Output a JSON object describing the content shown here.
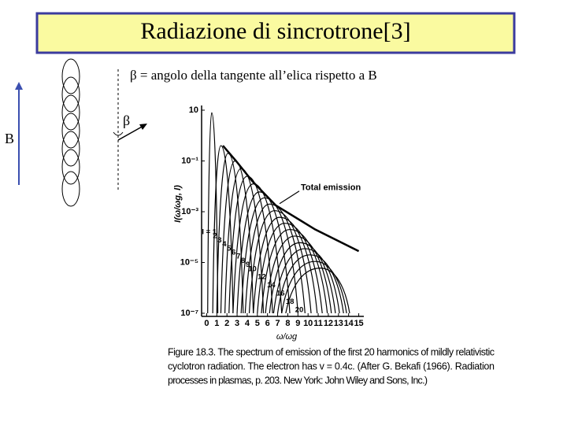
{
  "slide": {
    "title": "Radiazione di sincrotrone[3]",
    "subtitle": "β = angolo della tangente all’elica rispetto a B",
    "b_label": "B",
    "beta_label": "β",
    "caption": [
      "Figure 18.3. The spectrum of emission of the first 20 harmonics of mildly relativistic",
      "cyclotron radiation. The electron has v = 0.4c. (After G. Bekafi (1966). Radiation",
      "processes in plasmas, p. 203. New York: John Wiley and Sons, Inc.)"
    ]
  },
  "chart_data": {
    "type": "line",
    "color": "#000000",
    "log_y": true,
    "y_label": "I(ω/ωg, l)",
    "x_label": "ω/ωg",
    "xlim": [
      -0.5,
      15.5
    ],
    "ylim": [
      1e-07,
      10
    ],
    "xticks": [
      0,
      1,
      2,
      3,
      4,
      5,
      6,
      7,
      8,
      9,
      10,
      11,
      12,
      13,
      14,
      15
    ],
    "yticks": [
      10,
      {
        "value": 0.1,
        "label": "10⁻¹"
      },
      {
        "value": 0.001,
        "label": "10⁻³"
      },
      {
        "value": 1e-05,
        "label": "10⁻⁵"
      },
      {
        "value": 1e-07,
        "label": "10⁻⁷"
      }
    ],
    "series": [
      {
        "name": "l = 1",
        "x": [
          0.1,
          0.5,
          1.1
        ],
        "values": [
          1e-07,
          8,
          1e-07
        ]
      },
      {
        "name": "2",
        "x": [
          0.6,
          1.4,
          2.6
        ],
        "values": [
          1e-07,
          0.4,
          1e-07
        ]
      },
      {
        "name": "3",
        "x": [
          1.0,
          2.1,
          3.6
        ],
        "values": [
          1e-07,
          0.2,
          1e-07
        ]
      },
      {
        "name": "4",
        "x": [
          1.4,
          2.8,
          4.6
        ],
        "values": [
          1e-07,
          0.1,
          1e-07
        ]
      },
      {
        "name": "5",
        "x": [
          1.8,
          3.4,
          5.6
        ],
        "values": [
          1e-07,
          0.05,
          1e-07
        ]
      },
      {
        "name": "6",
        "x": [
          2.2,
          4.0,
          6.5
        ],
        "values": [
          1e-07,
          0.025,
          1e-07
        ]
      },
      {
        "name": "7",
        "x": [
          2.6,
          4.6,
          7.4
        ],
        "values": [
          1e-07,
          0.0125,
          1e-07
        ]
      },
      {
        "name": "8",
        "x": [
          3.0,
          5.2,
          8.2
        ],
        "values": [
          1e-07,
          0.006,
          1e-07
        ]
      },
      {
        "name": "9",
        "x": [
          3.4,
          5.7,
          9.0
        ],
        "values": [
          1e-07,
          0.0035,
          1e-07
        ]
      },
      {
        "name": "10",
        "x": [
          3.8,
          6.2,
          9.7
        ],
        "values": [
          1e-07,
          0.002,
          1e-07
        ]
      },
      {
        "name": null,
        "x": [
          4.2,
          6.7,
          10.3
        ],
        "values": [
          1e-07,
          0.0011,
          1e-07
        ]
      },
      {
        "name": "12",
        "x": [
          4.6,
          7.2,
          10.9
        ],
        "values": [
          1e-07,
          0.0006,
          1e-07
        ]
      },
      {
        "name": null,
        "x": [
          5.0,
          7.7,
          11.4
        ],
        "values": [
          1e-07,
          0.00035,
          1e-07
        ]
      },
      {
        "name": "14",
        "x": [
          5.4,
          8.2,
          11.9
        ],
        "values": [
          1e-07,
          0.0002,
          1e-07
        ]
      },
      {
        "name": null,
        "x": [
          5.8,
          8.7,
          12.3
        ],
        "values": [
          1e-07,
          0.00011,
          1e-07
        ]
      },
      {
        "name": "16",
        "x": [
          6.2,
          9.2,
          12.7
        ],
        "values": [
          1e-07,
          6e-05,
          1e-07
        ]
      },
      {
        "name": null,
        "x": [
          6.6,
          9.7,
          13.1
        ],
        "values": [
          1e-07,
          3.5e-05,
          1e-07
        ]
      },
      {
        "name": "18",
        "x": [
          7.0,
          10.2,
          13.5
        ],
        "values": [
          1e-07,
          2e-05,
          1e-07
        ]
      },
      {
        "name": null,
        "x": [
          7.4,
          10.7,
          13.8
        ],
        "values": [
          1e-07,
          1.1e-05,
          1e-07
        ]
      },
      {
        "name": "20",
        "x": [
          7.8,
          11.2,
          14.1
        ],
        "values": [
          1e-07,
          6e-06,
          1e-07
        ]
      },
      {
        "name": "Total emission",
        "x": [
          1.6,
          2.9,
          4.5,
          6.8,
          10.7,
          15
        ],
        "values": [
          0.4,
          0.1,
          0.016,
          0.0018,
          0.0002,
          2.8e-05
        ]
      }
    ]
  }
}
